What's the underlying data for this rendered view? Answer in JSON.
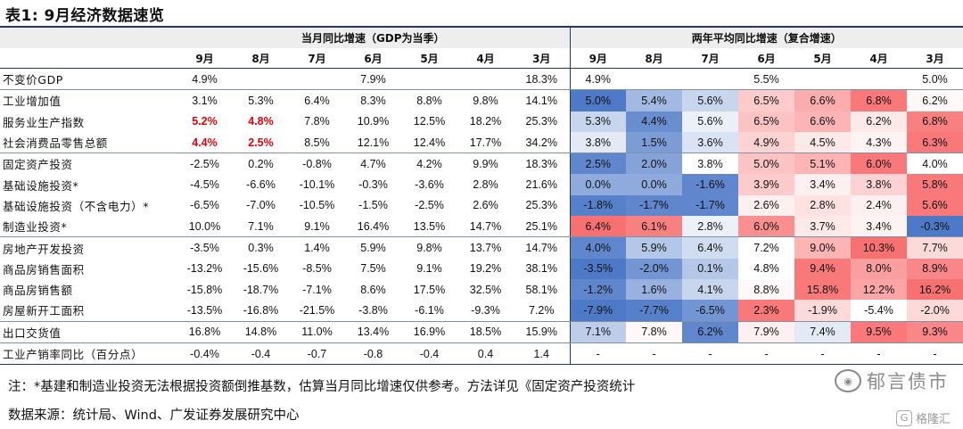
{
  "title": "表1:  9月经济数据速览",
  "colors": {
    "header_bg": "#eeeeee",
    "rule": "#1f3864",
    "highlight_red_text": "#e8000b",
    "heat_low": "#4472c4",
    "heat_high": "#f8696b"
  },
  "table": {
    "group_headers": {
      "current": "当月同比增速（GDP为当季）",
      "two_year": "两年平均同比增速（复合增速）"
    },
    "months": [
      "9月",
      "8月",
      "7月",
      "6月",
      "5月",
      "4月",
      "3月"
    ],
    "rows": [
      {
        "label": "不变价GDP",
        "cur": [
          "4.9%",
          "",
          "",
          "7.9%",
          "",
          "",
          "18.3%"
        ],
        "avg": [
          "4.9%",
          "",
          "",
          "5.5%",
          "",
          "",
          "5.0%"
        ],
        "heat": [
          null,
          null,
          null,
          null,
          null,
          null,
          null
        ],
        "red": [],
        "group_end": true
      },
      {
        "label": "工业增加值",
        "cur": [
          "3.1%",
          "5.3%",
          "6.4%",
          "8.3%",
          "8.8%",
          "9.8%",
          "14.1%"
        ],
        "avg": [
          "5.0%",
          "5.4%",
          "5.6%",
          "6.5%",
          "6.6%",
          "6.8%",
          "6.2%"
        ],
        "heat": [
          -0.95,
          -0.5,
          -0.3,
          0.35,
          0.55,
          0.9,
          0.05
        ],
        "red": []
      },
      {
        "label": "服务业生产指数",
        "cur": [
          "5.2%",
          "4.8%",
          "7.8%",
          "10.9%",
          "12.5%",
          "18.2%",
          "25.3%"
        ],
        "avg": [
          "5.3%",
          "4.4%",
          "5.6%",
          "6.5%",
          "6.6%",
          "6.2%",
          "6.8%"
        ],
        "heat": [
          -0.3,
          -0.8,
          -0.1,
          0.4,
          0.5,
          0.15,
          0.85
        ],
        "red": [
          0,
          1
        ]
      },
      {
        "label": "社会消费品零售总额",
        "cur": [
          "4.4%",
          "2.5%",
          "8.5%",
          "12.1%",
          "12.4%",
          "17.7%",
          "34.2%"
        ],
        "avg": [
          "3.8%",
          "1.5%",
          "3.6%",
          "4.9%",
          "4.5%",
          "4.3%",
          "6.3%"
        ],
        "heat": [
          -0.15,
          -0.7,
          -0.2,
          0.3,
          0.15,
          0.08,
          0.9
        ],
        "red": [
          0,
          1
        ],
        "group_end": true
      },
      {
        "label": "固定资产投资",
        "cur": [
          "-2.5%",
          "0.2%",
          "-0.8%",
          "4.7%",
          "4.2%",
          "9.9%",
          "18.3%"
        ],
        "avg": [
          "2.5%",
          "2.0%",
          "3.8%",
          "5.0%",
          "5.1%",
          "6.0%",
          "4.0%"
        ],
        "heat": [
          -0.85,
          -0.65,
          0.0,
          0.4,
          0.5,
          0.9,
          0.0
        ],
        "red": []
      },
      {
        "label": "基础设施投资*",
        "cur": [
          "-4.5%",
          "-6.6%",
          "-10.1%",
          "-0.3%",
          "-3.6%",
          "2.8%",
          "21.6%"
        ],
        "avg": [
          "0.0%",
          "0.0%",
          "-1.6%",
          "3.9%",
          "3.4%",
          "3.8%",
          "5.8%"
        ],
        "heat": [
          -0.6,
          -0.6,
          -0.85,
          0.35,
          0.1,
          0.3,
          0.9
        ],
        "red": []
      },
      {
        "label": "基础设施投资（不含电力）*",
        "cur": [
          "-6.5%",
          "-7.0%",
          "-10.5%",
          "-1.5%",
          "-2.5%",
          "2.6%",
          "25.3%"
        ],
        "avg": [
          "-1.8%",
          "-1.7%",
          "-1.7%",
          "2.6%",
          "2.8%",
          "2.4%",
          "5.6%"
        ],
        "heat": [
          -0.9,
          -0.85,
          -0.85,
          0.1,
          0.2,
          0.1,
          0.9
        ],
        "red": []
      },
      {
        "label": "制造业投资*",
        "cur": [
          "10.0%",
          "7.1%",
          "9.1%",
          "16.4%",
          "13.5%",
          "14.7%",
          "25.1%"
        ],
        "avg": [
          "6.4%",
          "6.1%",
          "2.8%",
          "6.0%",
          "3.7%",
          "3.4%",
          "-0.3%"
        ],
        "heat": [
          0.95,
          0.85,
          -0.1,
          0.75,
          0.15,
          0.08,
          -0.95
        ],
        "red": [],
        "group_end": true
      },
      {
        "label": "房地产开发投资",
        "cur": [
          "-3.5%",
          "0.3%",
          "1.4%",
          "5.9%",
          "9.8%",
          "13.7%",
          "14.7%"
        ],
        "avg": [
          "4.0%",
          "5.9%",
          "6.4%",
          "7.2%",
          "9.0%",
          "10.3%",
          "7.7%"
        ],
        "heat": [
          -0.85,
          -0.4,
          -0.25,
          0.0,
          0.5,
          0.95,
          0.25
        ],
        "red": []
      },
      {
        "label": "商品房销售面积",
        "cur": [
          "-13.2%",
          "-15.6%",
          "-8.5%",
          "7.5%",
          "9.1%",
          "19.2%",
          "38.1%"
        ],
        "avg": [
          "-3.5%",
          "-2.0%",
          "0.1%",
          "4.8%",
          "9.4%",
          "8.0%",
          "8.9%"
        ],
        "heat": [
          -0.95,
          -0.75,
          -0.4,
          0.0,
          0.9,
          0.65,
          0.8
        ],
        "red": []
      },
      {
        "label": "商品房销售额",
        "cur": [
          "-15.8%",
          "-18.7%",
          "-7.1%",
          "8.6%",
          "17.5%",
          "32.5%",
          "58.1%"
        ],
        "avg": [
          "-1.2%",
          "1.6%",
          "4.1%",
          "8.8%",
          "15.8%",
          "12.2%",
          "16.2%"
        ],
        "heat": [
          -0.85,
          -0.55,
          -0.3,
          0.05,
          0.9,
          0.6,
          0.95
        ],
        "red": []
      },
      {
        "label": "房屋新开工面积",
        "cur": [
          "-13.5%",
          "-16.8%",
          "-21.5%",
          "-3.8%",
          "-6.1%",
          "-9.3%",
          "7.2%"
        ],
        "avg": [
          "-7.9%",
          "-7.7%",
          "-6.5%",
          "2.3%",
          "-1.9%",
          "-5.4%",
          "-2.0%"
        ],
        "heat": [
          -0.95,
          -0.9,
          -0.75,
          0.9,
          0.25,
          0.0,
          0.25
        ],
        "red": [],
        "group_end": true
      },
      {
        "label": "出口交货值",
        "cur": [
          "16.8%",
          "14.8%",
          "11.0%",
          "13.4%",
          "16.9%",
          "18.5%",
          "15.9%"
        ],
        "avg": [
          "7.1%",
          "7.8%",
          "6.2%",
          "7.9%",
          "7.4%",
          "9.5%",
          "9.3%"
        ],
        "heat": [
          -0.35,
          0.05,
          -0.85,
          0.1,
          -0.15,
          0.9,
          0.8
        ],
        "red": [],
        "group_end": true
      },
      {
        "label": "工业产销率同比（百分点）",
        "cur": [
          "-0.4%",
          "-0.4",
          "-0.7",
          "-0.8",
          "-0.4",
          "0.4",
          "1.4"
        ],
        "avg": [
          "-",
          "-",
          "-",
          "-",
          "-",
          "-",
          "-"
        ],
        "heat": [
          null,
          null,
          null,
          null,
          null,
          null,
          null
        ],
        "red": [],
        "last": true
      }
    ]
  },
  "notes": {
    "line1": "注：*基建和制造业投资无法根据投资额倒推基数，估算当月同比增速仅供参考。方法详见《固定资产投资统计",
    "line2": "数据来源：统计局、Wind、广发证券发展研究中心"
  },
  "watermark": {
    "logo_icon": "wechat-like-round-logo",
    "main_text": "郁言债市",
    "sub_icon": "gelonghui-g-logo",
    "sub_text": "格隆汇"
  }
}
